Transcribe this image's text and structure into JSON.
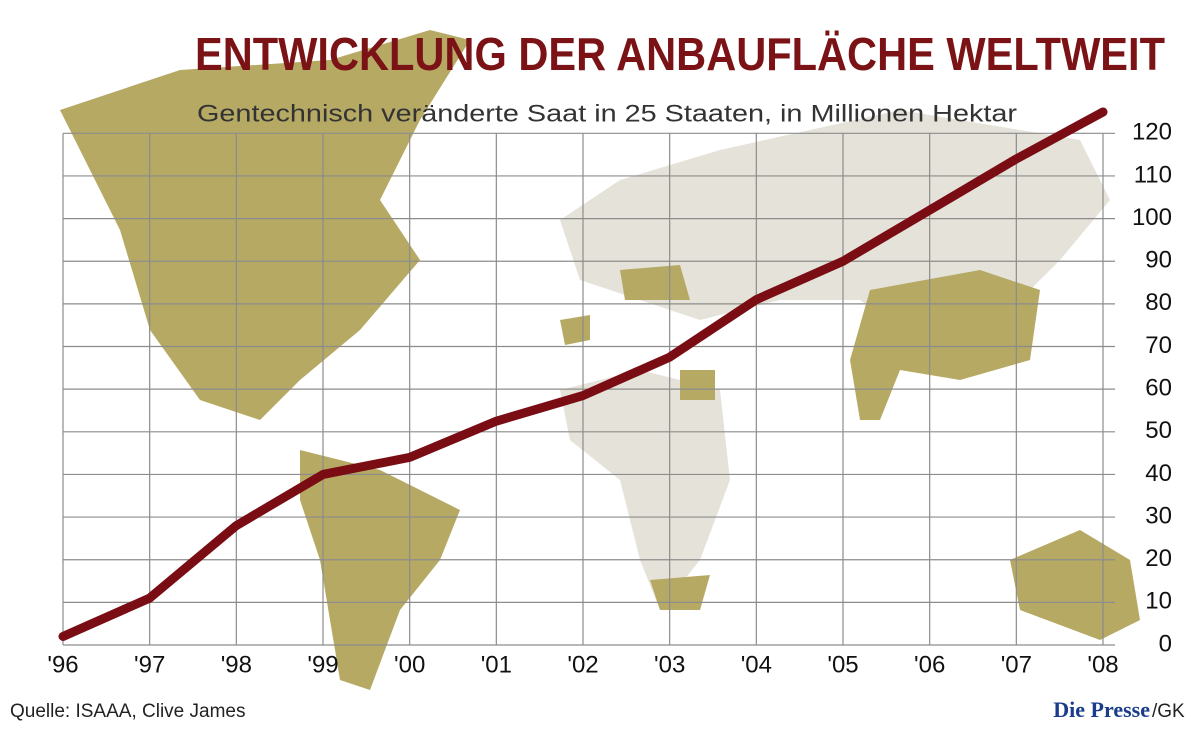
{
  "chart_data": {
    "type": "line",
    "title": "ENTWICKLUNG DER ANBAUFLÄCHE WELTWEIT",
    "subtitle": "Gentechnisch veränderte Saat in 25 Staaten, in Millionen Hektar",
    "source": "Quelle: ISAAA, Clive James",
    "logo": "Die Presse",
    "logo_suffix": "/GK",
    "categories": [
      "'96",
      "'97",
      "'98",
      "'99",
      "'00",
      "'01",
      "'02",
      "'03",
      "'04",
      "'05",
      "'06",
      "'07",
      "'08"
    ],
    "values": [
      2,
      11,
      28,
      40,
      44,
      52.5,
      58.5,
      67.5,
      81,
      90,
      102,
      114,
      125
    ],
    "color": "#7a0d14",
    "ylim": [
      0,
      125
    ],
    "yticks": [
      0,
      10,
      20,
      30,
      40,
      50,
      60,
      70,
      80,
      90,
      100,
      110,
      120
    ],
    "grid": true
  }
}
